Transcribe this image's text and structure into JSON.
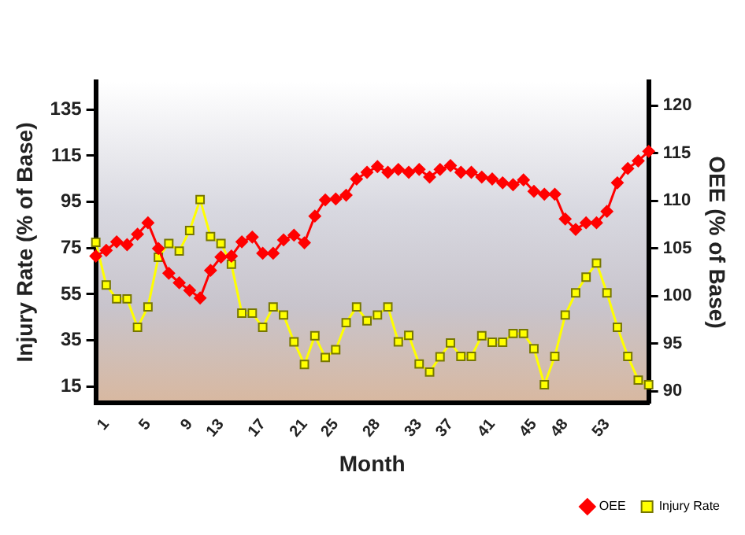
{
  "chart_data": {
    "type": "line",
    "xlabel": "Month",
    "ylabel": "Injury Rate (% of Base)",
    "y2label": "OEE (% of Base)",
    "categories": [
      null,
      "1",
      null,
      null,
      null,
      "5",
      null,
      null,
      null,
      "9",
      null,
      null,
      "13",
      null,
      null,
      null,
      "17",
      null,
      null,
      null,
      "21",
      null,
      null,
      "25",
      null,
      null,
      null,
      "28",
      null,
      null,
      null,
      "33",
      null,
      null,
      "37",
      null,
      null,
      null,
      "41",
      null,
      null,
      null,
      "45",
      null,
      null,
      "48",
      null,
      null,
      null,
      "53",
      null,
      null,
      null,
      null
    ],
    "series": [
      {
        "name": "OEE",
        "color": "#ff0000",
        "axis": "y2",
        "marker": "diamond",
        "values": [
          104.2,
          104.8,
          105.7,
          105.4,
          106.5,
          107.7,
          105,
          102.4,
          101.4,
          100.6,
          99.8,
          102.7,
          104.1,
          104.2,
          105.7,
          106.2,
          104.5,
          104.5,
          105.9,
          106.4,
          105.6,
          108.4,
          110.1,
          110.2,
          110.6,
          112.3,
          113,
          113.6,
          113,
          113.3,
          113,
          113.3,
          112.5,
          113.3,
          113.7,
          113,
          113,
          112.5,
          112.3,
          111.9,
          111.7,
          112.2,
          111,
          110.7,
          110.7,
          108.1,
          107,
          107.7,
          107.7,
          108.9,
          111.9,
          113.4,
          114.2,
          115.2
        ]
      },
      {
        "name": "Injury Rate",
        "color": "#ffff00",
        "marker": "square",
        "values": [
          77.5,
          59,
          53,
          53,
          40.7,
          49.5,
          71,
          77,
          73.7,
          82.6,
          96,
          80,
          77,
          68,
          46.8,
          46.8,
          40.7,
          49.5,
          46,
          34.4,
          24.6,
          37,
          27.6,
          31,
          42.7,
          49.5,
          43.5,
          46,
          49.5,
          34.4,
          37.2,
          24.8,
          21.3,
          27.9,
          33.9,
          28.1,
          28.1,
          37,
          34.2,
          34.2,
          38,
          38,
          31.4,
          15.8,
          28.1,
          46,
          55.6,
          62.4,
          68.5,
          55.6,
          40.7,
          28.1,
          17.8,
          15.8
        ]
      }
    ],
    "ylim": [
      8,
      147
    ],
    "yticks": [
      15,
      35,
      55,
      75,
      95,
      115,
      135
    ],
    "y2lim": [
      88.8,
      122.5
    ],
    "y2ticks": [
      90,
      95,
      100,
      105,
      110,
      115,
      120
    ],
    "grid": false,
    "legend": "bottom right"
  }
}
